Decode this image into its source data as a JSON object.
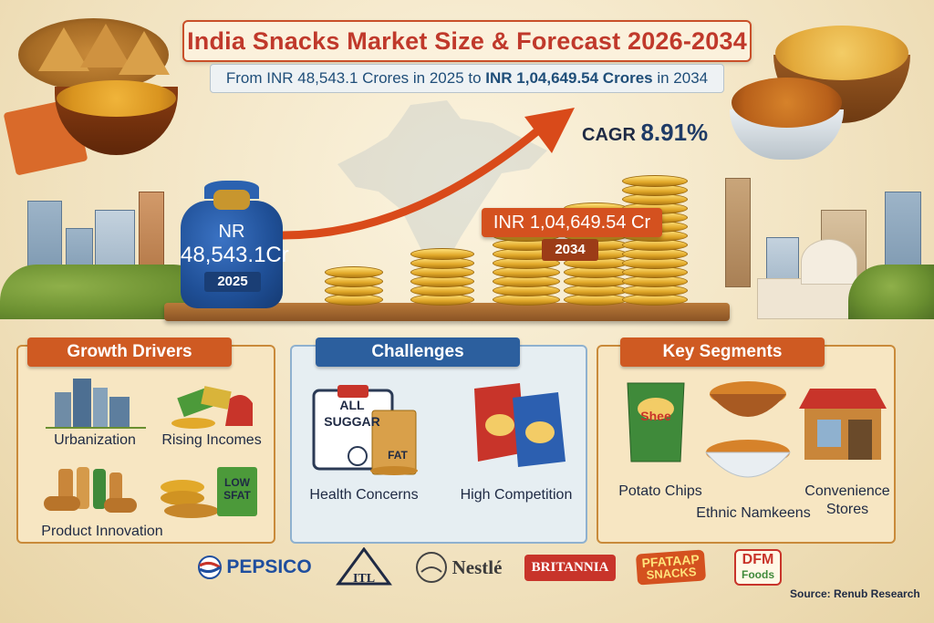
{
  "title": "India Snacks Market Size & Forecast 2026-2034",
  "subtitle": {
    "prefix": "From INR ",
    "start_value": "48,543.1 Crores",
    "middle": " in 2025 to ",
    "end_value": "INR 1,04,649.54 Crores",
    "suffix": " in 2034"
  },
  "cagr": {
    "label": "CAGR ",
    "value": "8.91%"
  },
  "start": {
    "line1": "NR",
    "line2": "48,543.1Cr",
    "year": "2025"
  },
  "end": {
    "value": "INR 1,04,649.54 Cr",
    "year": "2034"
  },
  "panels": {
    "drivers": {
      "title": "Growth Drivers",
      "items": [
        "Urbanization",
        "Rising Incomes",
        "Product Innovation"
      ],
      "low_fat_badge": {
        "line1": "LOW",
        "line2": "SFAT"
      }
    },
    "challenges": {
      "title": "Challenges",
      "items": [
        "Health Concerns",
        "High Competition"
      ],
      "clipboard": {
        "line1": "ALL",
        "line2": "SUGGAR"
      },
      "fat_label": "FAT"
    },
    "segments": {
      "title": "Key Segments",
      "items": [
        "Potato Chips",
        "Ethnic Namkeens",
        "Convenience",
        "Stores"
      ],
      "chip_bag_label": "Shee"
    }
  },
  "brands": [
    "PEPSICO",
    "ITL",
    "Nestlé",
    "BRITANNIA",
    "PFATAAP",
    "SNACKS",
    "DFM",
    "Foods"
  ],
  "source": "Source: Renub Research",
  "colors": {
    "title_red": "#c0392b",
    "accent_orange": "#cf5a22",
    "accent_blue": "#2c5f9e",
    "gold": "#e2a92a"
  }
}
